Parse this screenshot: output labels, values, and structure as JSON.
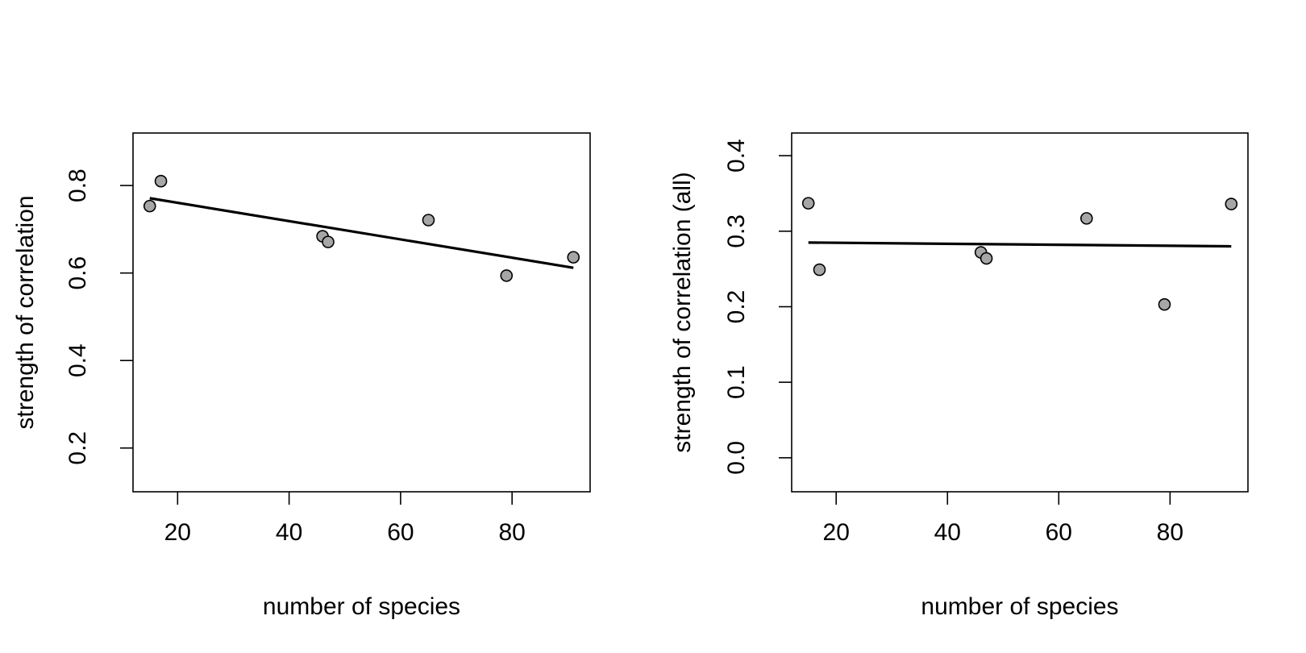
{
  "chart_data": [
    {
      "type": "scatter",
      "xlabel": "number of species",
      "ylabel": "strength of correlation",
      "xlim": [
        12,
        94
      ],
      "ylim": [
        0.1,
        0.92
      ],
      "xticks": [
        20,
        40,
        60,
        80
      ],
      "yticks": [
        0.2,
        0.4,
        0.6,
        0.8
      ],
      "xtick_labels": [
        "20",
        "40",
        "60",
        "80"
      ],
      "ytick_labels": [
        "0.2",
        "0.4",
        "0.6",
        "0.8"
      ],
      "points": [
        {
          "x": 15,
          "y": 0.753
        },
        {
          "x": 17,
          "y": 0.81
        },
        {
          "x": 46,
          "y": 0.684
        },
        {
          "x": 47,
          "y": 0.671
        },
        {
          "x": 65,
          "y": 0.721
        },
        {
          "x": 79,
          "y": 0.594
        },
        {
          "x": 91,
          "y": 0.636
        }
      ],
      "fit_line": {
        "x": [
          15,
          91
        ],
        "y": [
          0.771,
          0.612
        ]
      },
      "point_color": "#a6a6a6",
      "grid": false,
      "legend": "none"
    },
    {
      "type": "scatter",
      "xlabel": "number of species",
      "ylabel": "strength of correlation (all)",
      "xlim": [
        12,
        94
      ],
      "ylim": [
        -0.045,
        0.43
      ],
      "xticks": [
        20,
        40,
        60,
        80
      ],
      "yticks": [
        0.0,
        0.1,
        0.2,
        0.3,
        0.4
      ],
      "xtick_labels": [
        "20",
        "40",
        "60",
        "80"
      ],
      "ytick_labels": [
        "0.0",
        "0.1",
        "0.2",
        "0.3",
        "0.4"
      ],
      "points": [
        {
          "x": 15,
          "y": 0.337
        },
        {
          "x": 17,
          "y": 0.249
        },
        {
          "x": 46,
          "y": 0.272
        },
        {
          "x": 47,
          "y": 0.264
        },
        {
          "x": 65,
          "y": 0.317
        },
        {
          "x": 79,
          "y": 0.203
        },
        {
          "x": 91,
          "y": 0.336
        }
      ],
      "fit_line": {
        "x": [
          15,
          91
        ],
        "y": [
          0.285,
          0.28
        ]
      },
      "point_color": "#a6a6a6",
      "grid": false,
      "legend": "none"
    }
  ]
}
